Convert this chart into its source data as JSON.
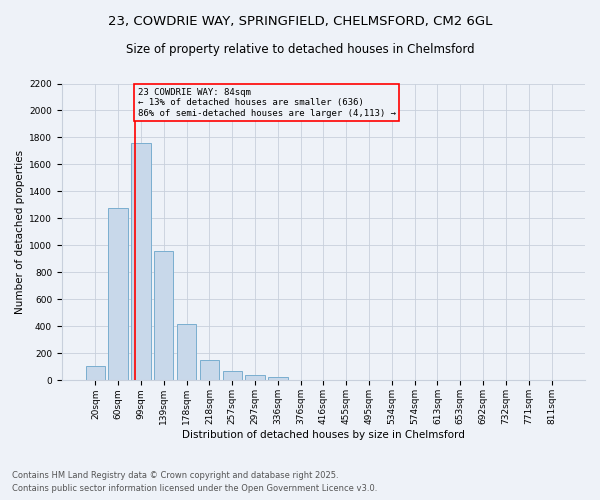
{
  "title_line1": "23, COWDRIE WAY, SPRINGFIELD, CHELMSFORD, CM2 6GL",
  "title_line2": "Size of property relative to detached houses in Chelmsford",
  "xlabel": "Distribution of detached houses by size in Chelmsford",
  "ylabel": "Number of detached properties",
  "footnote1": "Contains HM Land Registry data © Crown copyright and database right 2025.",
  "footnote2": "Contains public sector information licensed under the Open Government Licence v3.0.",
  "bar_labels": [
    "20sqm",
    "60sqm",
    "99sqm",
    "139sqm",
    "178sqm",
    "218sqm",
    "257sqm",
    "297sqm",
    "336sqm",
    "376sqm",
    "416sqm",
    "455sqm",
    "495sqm",
    "534sqm",
    "574sqm",
    "613sqm",
    "653sqm",
    "692sqm",
    "732sqm",
    "771sqm",
    "811sqm"
  ],
  "bar_values": [
    110,
    1280,
    1760,
    960,
    420,
    150,
    70,
    40,
    22,
    0,
    0,
    0,
    0,
    0,
    0,
    0,
    0,
    0,
    0,
    0,
    0
  ],
  "bar_color": "#c8d8ea",
  "bar_edgecolor": "#7aaed0",
  "vline_x": 1.75,
  "vline_color": "red",
  "annotation_text": "23 COWDRIE WAY: 84sqm\n← 13% of detached houses are smaller (636)\n86% of semi-detached houses are larger (4,113) →",
  "annotation_box_color": "red",
  "ylim": [
    0,
    2200
  ],
  "yticks": [
    0,
    200,
    400,
    600,
    800,
    1000,
    1200,
    1400,
    1600,
    1800,
    2000,
    2200
  ],
  "bg_color": "#eef2f8",
  "grid_color": "#c8d0dc",
  "title_fontsize": 9.5,
  "subtitle_fontsize": 8.5,
  "label_fontsize": 7.5,
  "tick_fontsize": 6.5,
  "footnote_fontsize": 6.0
}
